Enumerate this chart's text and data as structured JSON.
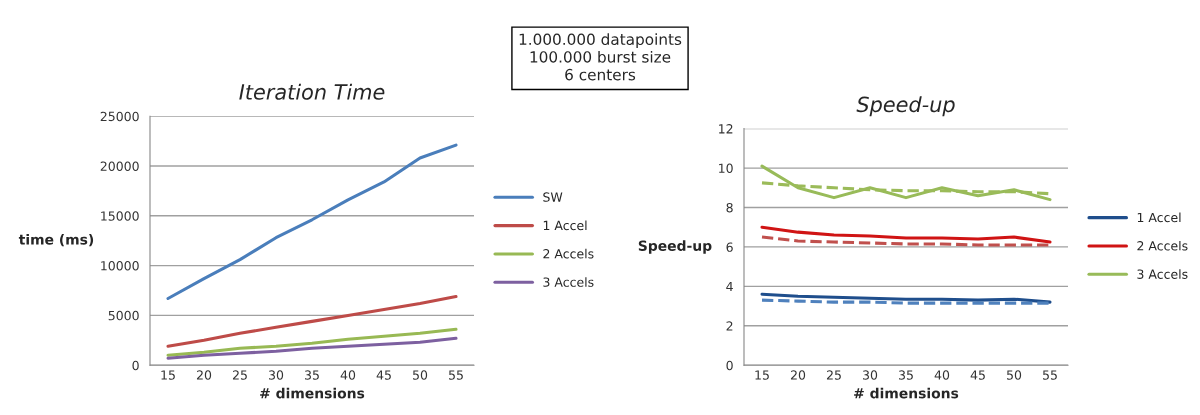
{
  "chart_data": [
    {
      "type": "line",
      "title": "Iteration Time",
      "xlabel": "# dimensions",
      "ylabel": "time (ms)",
      "annotations": [
        "1.000.000 datapoints\n100.000 burst size\n6 centers"
      ],
      "categories": [
        "15",
        "20",
        "25",
        "30",
        "35",
        "40",
        "45",
        "50",
        "55"
      ],
      "series": [
        {
          "name": "SW",
          "color": "#4a7ebb",
          "values": [
            6700,
            8700,
            10600,
            12800,
            14600,
            16600,
            18400,
            20800,
            22100
          ]
        },
        {
          "name": "1 Accel",
          "color": "#be4b48",
          "values": [
            1900,
            2500,
            3200,
            3800,
            4400,
            5000,
            5600,
            6200,
            6900
          ]
        },
        {
          "name": "2 Accels",
          "color": "#98b954",
          "values": [
            1000,
            1300,
            1700,
            1900,
            2200,
            2600,
            2900,
            3200,
            3600
          ]
        },
        {
          "name": "3 Accels",
          "color": "#7d60a0",
          "values": [
            700,
            1000,
            1200,
            1400,
            1700,
            1900,
            2100,
            2300,
            2700
          ]
        }
      ],
      "ylim": [
        0,
        25000
      ],
      "yticks": [
        0,
        5000,
        10000,
        15000,
        20000,
        25000
      ],
      "grid": "y",
      "legend": "right",
      "line_style": "solid"
    },
    {
      "type": "line",
      "title": "Speed-up",
      "xlabel": "# dimensions",
      "ylabel": "Speed-up",
      "categories": [
        "15",
        "20",
        "25",
        "30",
        "35",
        "40",
        "45",
        "50",
        "55"
      ],
      "series": [
        {
          "name": "1 Accel",
          "color": "#1f4e8c",
          "values": [
            3.6,
            3.5,
            3.45,
            3.4,
            3.35,
            3.35,
            3.3,
            3.35,
            3.2
          ]
        },
        {
          "name": "2 Accels",
          "color": "#d01414",
          "values": [
            7.0,
            6.75,
            6.6,
            6.55,
            6.45,
            6.45,
            6.4,
            6.5,
            6.25
          ]
        },
        {
          "name": "3 Accels",
          "color": "#98bb59",
          "values": [
            10.1,
            9.0,
            8.5,
            9.0,
            8.5,
            9.0,
            8.6,
            8.9,
            8.4
          ]
        },
        {
          "color": "#4f81bd",
          "line_style": "dashed",
          "values": [
            3.3,
            3.25,
            3.2,
            3.2,
            3.15,
            3.15,
            3.15,
            3.15,
            3.15
          ]
        },
        {
          "color": "#c0504d",
          "line_style": "dashed",
          "values": [
            6.5,
            6.3,
            6.25,
            6.2,
            6.15,
            6.15,
            6.1,
            6.1,
            6.1
          ]
        },
        {
          "color": "#9bbb59",
          "line_style": "dashed",
          "values": [
            9.25,
            9.1,
            9.0,
            8.9,
            8.85,
            8.85,
            8.8,
            8.8,
            8.7
          ]
        }
      ],
      "ylim": [
        0,
        12
      ],
      "yticks": [
        0,
        2,
        4,
        6,
        8,
        10,
        12
      ],
      "grid": "y",
      "legend": "right",
      "line_style": "solid"
    }
  ]
}
